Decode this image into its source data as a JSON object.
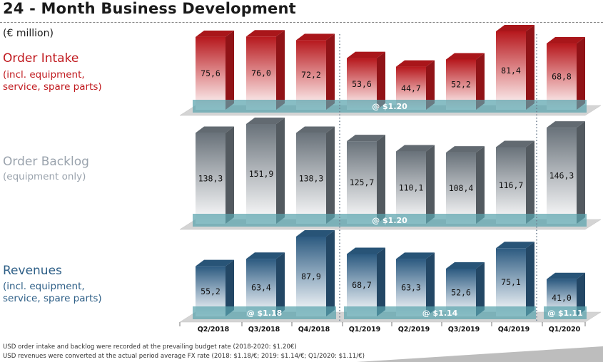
{
  "slide": {
    "title": "24 - Month Business Development",
    "unit": "(€ million)",
    "footnotes": [
      "USD order intake and backlog were recorded at the prevailing budget rate (2018-2020: $1.20€)",
      "USD revenues were converted at the actual period average FX rate (2018: $1.18/€; 2019: $1.14/€; Q1/2020: $1.11/€)"
    ]
  },
  "sections": [
    {
      "title": "Order Intake",
      "subtitle_lines": [
        "(incl. equipment,",
        "service, spare parts)"
      ],
      "color": "#c0191e"
    },
    {
      "title": "Order Backlog",
      "subtitle_lines": [
        "(equipment only)"
      ],
      "color": "#9aa3ad"
    },
    {
      "title": "Revenues",
      "subtitle_lines": [
        "(incl. equipment,",
        "service, spare parts)"
      ],
      "color": "#2e5f87"
    }
  ],
  "chart_data": [
    {
      "type": "bar",
      "name": "Order Intake",
      "categories": [
        "Q2/2018",
        "Q3/2018",
        "Q4/2018",
        "Q1/2019",
        "Q2/2019",
        "Q3/2019",
        "Q4/2019",
        "Q1/2020"
      ],
      "values": [
        75.6,
        76.0,
        72.2,
        53.6,
        44.7,
        52.2,
        81.4,
        68.8
      ],
      "value_labels": [
        "75,6",
        "76,0",
        "72,2",
        "53,6",
        "44,7",
        "52,2",
        "81,4",
        "68,8"
      ],
      "fx_bands": [
        {
          "label": "@ $1.20",
          "from": 0,
          "to": 7
        }
      ],
      "color": "#c0191e"
    },
    {
      "type": "bar",
      "name": "Order Backlog",
      "categories": [
        "Q2/2018",
        "Q3/2018",
        "Q4/2018",
        "Q1/2019",
        "Q2/2019",
        "Q3/2019",
        "Q4/2019",
        "Q1/2020"
      ],
      "values": [
        138.3,
        151.9,
        138.3,
        125.7,
        110.1,
        108.4,
        116.7,
        146.3
      ],
      "value_labels": [
        "138,3",
        "151,9",
        "138,3",
        "125,7",
        "110,1",
        "108,4",
        "116,7",
        "146,3"
      ],
      "fx_bands": [
        {
          "label": "@ $1.20",
          "from": 0,
          "to": 7
        }
      ],
      "color": "#6f7880"
    },
    {
      "type": "bar",
      "name": "Revenues",
      "categories": [
        "Q2/2018",
        "Q3/2018",
        "Q4/2018",
        "Q1/2019",
        "Q2/2019",
        "Q3/2019",
        "Q4/2019",
        "Q1/2020"
      ],
      "values": [
        55.2,
        63.4,
        87.9,
        68.7,
        63.3,
        52.6,
        75.1,
        41.0
      ],
      "value_labels": [
        "55,2",
        "63,4",
        "87,9",
        "68,7",
        "63,3",
        "52,6",
        "75,1",
        "41,0"
      ],
      "fx_bands": [
        {
          "label": "@ $1.18",
          "from": 0,
          "to": 2
        },
        {
          "label": "@ $1.14",
          "from": 3,
          "to": 6
        },
        {
          "label": "@ $1.11",
          "from": 7,
          "to": 7
        }
      ],
      "color": "#2e5f87"
    }
  ]
}
